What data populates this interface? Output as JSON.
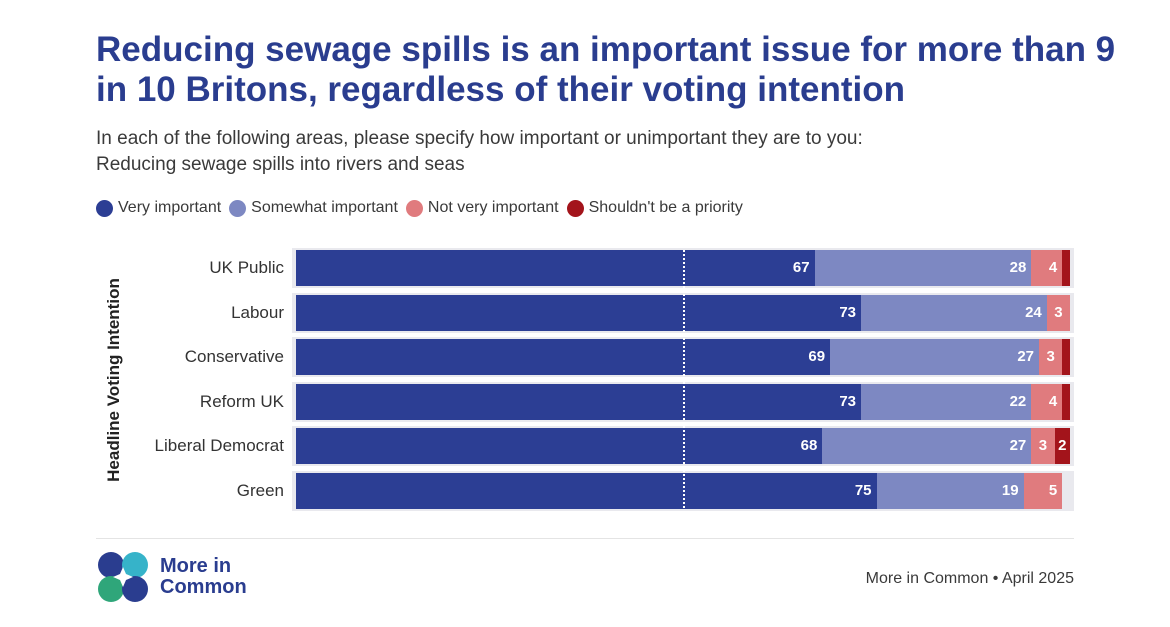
{
  "title": "Reducing sewage spills is an important issue for more than 9 in 10 Britons, regardless of their voting intention",
  "subtitle_line1": "In each of the following areas, please specify how important or unimportant they are to you:",
  "subtitle_line2": "Reducing sewage spills into rivers and seas",
  "colors": {
    "very": "#2c3e94",
    "somewhat": "#7d88c2",
    "not_very": "#e07b7e",
    "shouldnt": "#a3141b"
  },
  "chart_data": {
    "type": "bar",
    "orientation": "horizontal",
    "stacked": true,
    "title": "Reducing sewage spills is an important issue for more than 9 in 10 Britons, regardless of their voting intention",
    "ylabel": "Headline Voting Intention",
    "xlim": [
      0,
      100
    ],
    "categories": [
      "UK Public",
      "Labour",
      "Conservative",
      "Reform UK",
      "Liberal Democrat",
      "Green"
    ],
    "series": [
      {
        "name": "Very important",
        "values": [
          67,
          73,
          69,
          73,
          68,
          75
        ]
      },
      {
        "name": "Somewhat important",
        "values": [
          28,
          24,
          27,
          22,
          27,
          19
        ]
      },
      {
        "name": "Not very important",
        "values": [
          4,
          3,
          3,
          4,
          3,
          5
        ]
      },
      {
        "name": "Shouldn't be a priority",
        "values": [
          1,
          0,
          1,
          1,
          2,
          0
        ]
      }
    ],
    "legend_position": "top-left"
  },
  "footer": {
    "logo_line1": "More in",
    "logo_line2": "Common",
    "source": "More in Common • April 2025"
  }
}
